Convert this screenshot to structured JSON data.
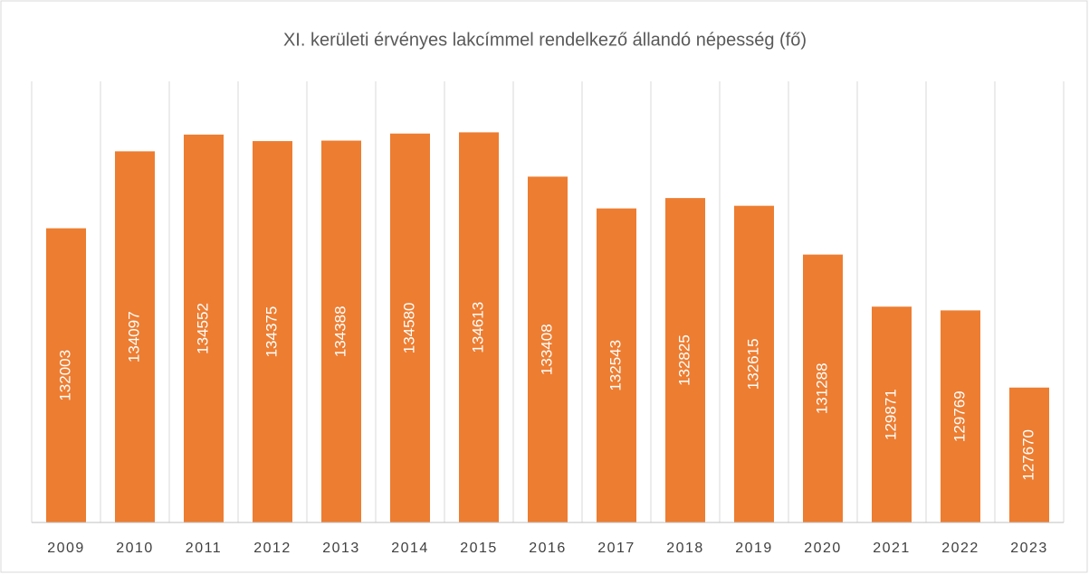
{
  "chart_data": {
    "type": "bar",
    "title": "XI. kerületi érvényes lakcímmel rendelkező állandó népesség (fő)",
    "categories": [
      "2009",
      "2010",
      "2011",
      "2012",
      "2013",
      "2014",
      "2015",
      "2016",
      "2017",
      "2018",
      "2019",
      "2020",
      "2021",
      "2022",
      "2023"
    ],
    "values": [
      132003,
      134097,
      134552,
      134375,
      134388,
      134580,
      134613,
      133408,
      132543,
      132825,
      132615,
      131288,
      129871,
      129769,
      127670
    ],
    "color": "#ed7d31",
    "ylim": [
      124000,
      136000
    ],
    "grid": true
  }
}
